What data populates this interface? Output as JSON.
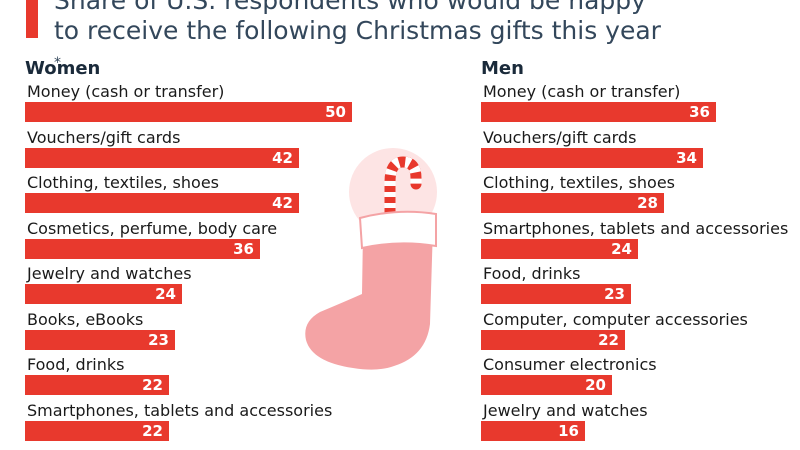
{
  "title": {
    "line1": "Share of U.S. respondents who would be happy",
    "line2": "to receive the following Christmas gifts this year",
    "asterisk": "*"
  },
  "colors": {
    "accent": "#e8392d",
    "stocking_body": "#f4a3a5",
    "stocking_cuff": "#ffffff",
    "circle": "#fde4e4"
  },
  "icons": [
    "stocking-icon",
    "candy-cane-icon"
  ],
  "chart_data": [
    {
      "type": "bar",
      "orientation": "horizontal",
      "title": "Women",
      "unit": "%",
      "categories": [
        "Money (cash or transfer)",
        "Vouchers/gift cards",
        "Clothing, textiles, shoes",
        "Cosmetics, perfume, body care",
        "Jewelry and watches",
        "Books, eBooks",
        "Food, drinks",
        "Smartphones, tablets and accessories"
      ],
      "values": [
        50,
        42,
        42,
        36,
        24,
        23,
        22,
        22
      ]
    },
    {
      "type": "bar",
      "orientation": "horizontal",
      "title": "Men",
      "unit": "%",
      "categories": [
        "Money (cash or transfer)",
        "Vouchers/gift cards",
        "Clothing, textiles, shoes",
        "Smartphones, tablets and accessories",
        "Food, drinks",
        "Computer, computer accessories",
        "Consumer electronics",
        "Jewelry and watches"
      ],
      "values": [
        36,
        34,
        28,
        24,
        23,
        22,
        20,
        16
      ]
    }
  ]
}
